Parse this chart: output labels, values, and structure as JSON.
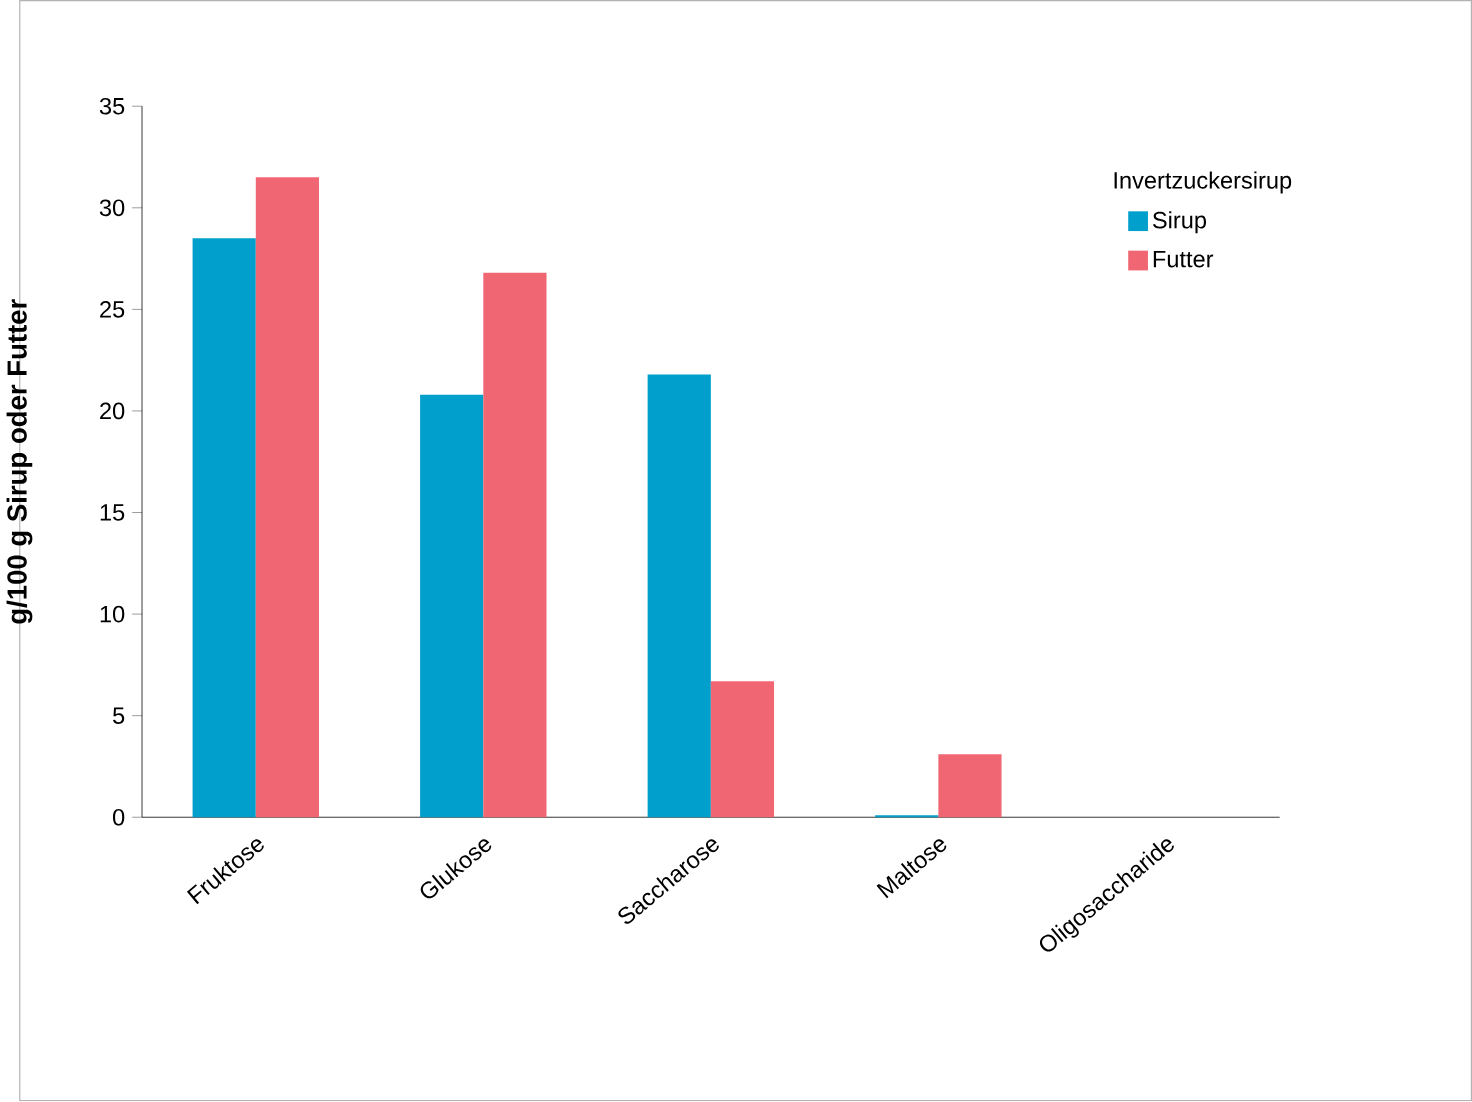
{
  "chart_data": {
    "type": "bar",
    "ylabel": "g/100 g Sirup oder Futter",
    "legend_title": "Invertzuckersirup",
    "categories": [
      "Fruktose",
      "Glukose",
      "Saccharose",
      "Maltose",
      "Oligosaccharide"
    ],
    "series": [
      {
        "name": "Sirup",
        "color": "#009fcc",
        "values": [
          28.5,
          20.8,
          21.8,
          0.1,
          0
        ]
      },
      {
        "name": "Futter",
        "color": "#f06773",
        "values": [
          31.5,
          26.8,
          6.7,
          3.1,
          0
        ]
      }
    ],
    "ylim": [
      0,
      35
    ],
    "yticks": [
      0,
      5,
      10,
      15,
      20,
      25,
      30,
      35
    ],
    "legend": "top right",
    "grid": false
  }
}
